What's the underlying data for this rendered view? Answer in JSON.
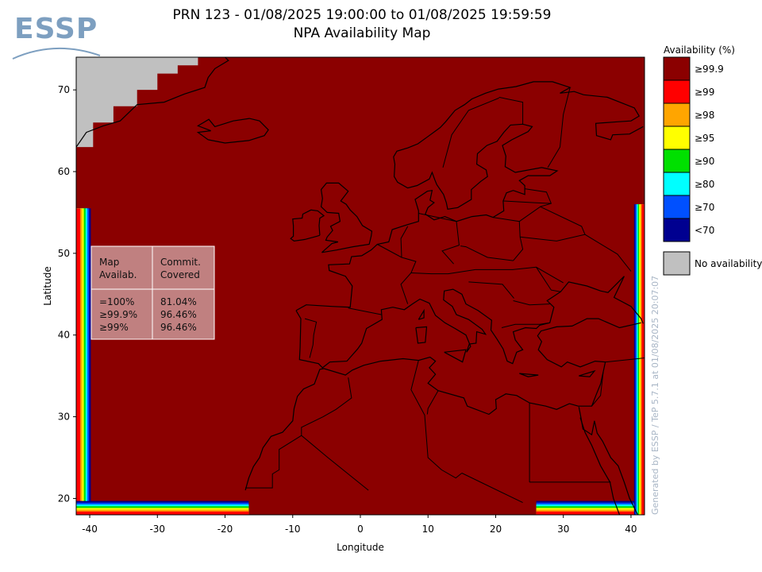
{
  "title_line1": "PRN 123 - 01/08/2025 19:00:00 to 01/08/2025 19:59:59",
  "title_line2": "NPA Availability Map",
  "logo_text": "ESSP",
  "credit": "Generated by ESSP / TeP 5.7.1 at 01/08/2025 20:07:07",
  "chart_data": {
    "type": "heatmap",
    "xlabel": "Longitude",
    "ylabel": "Latitude",
    "xlim": [
      -42,
      42
    ],
    "ylim": [
      18,
      74
    ],
    "xticks": [
      -40,
      -30,
      -20,
      -10,
      0,
      10,
      20,
      30,
      40
    ],
    "yticks": [
      20,
      30,
      40,
      50,
      60,
      70
    ],
    "grid": false,
    "legend_position": "right",
    "legend_title": "Availability (%)",
    "legend": [
      {
        "label": "≥99.9",
        "color": "#8b0000"
      },
      {
        "label": "≥99",
        "color": "#ff0000"
      },
      {
        "label": "≥98",
        "color": "#ffa500"
      },
      {
        "label": "≥95",
        "color": "#ffff00"
      },
      {
        "label": "≥90",
        "color": "#00e000"
      },
      {
        "label": "≥80",
        "color": "#00ffff"
      },
      {
        "label": "≥70",
        "color": "#0050ff"
      },
      {
        "label": "<70",
        "color": "#000090"
      }
    ],
    "no_availability": {
      "label": "No availability",
      "color": "#c0c0c0"
    },
    "no_availability_region": [
      [
        -42,
        63
      ],
      [
        -39.5,
        63
      ],
      [
        -39.5,
        66
      ],
      [
        -36.5,
        66
      ],
      [
        -36.5,
        68
      ],
      [
        -33,
        68
      ],
      [
        -33,
        70
      ],
      [
        -30,
        70
      ],
      [
        -30,
        72
      ],
      [
        -27,
        72
      ],
      [
        -27,
        73
      ],
      [
        -24,
        73
      ],
      [
        -24,
        74
      ],
      [
        -42,
        74
      ]
    ],
    "table": {
      "headers": [
        [
          "Map",
          "Availab."
        ],
        [
          "Commit.",
          "Covered"
        ]
      ],
      "rows": [
        [
          "=100%",
          "81.04%"
        ],
        [
          "≥99.9%",
          "96.46%"
        ],
        [
          "≥99%",
          "96.46%"
        ]
      ]
    }
  }
}
